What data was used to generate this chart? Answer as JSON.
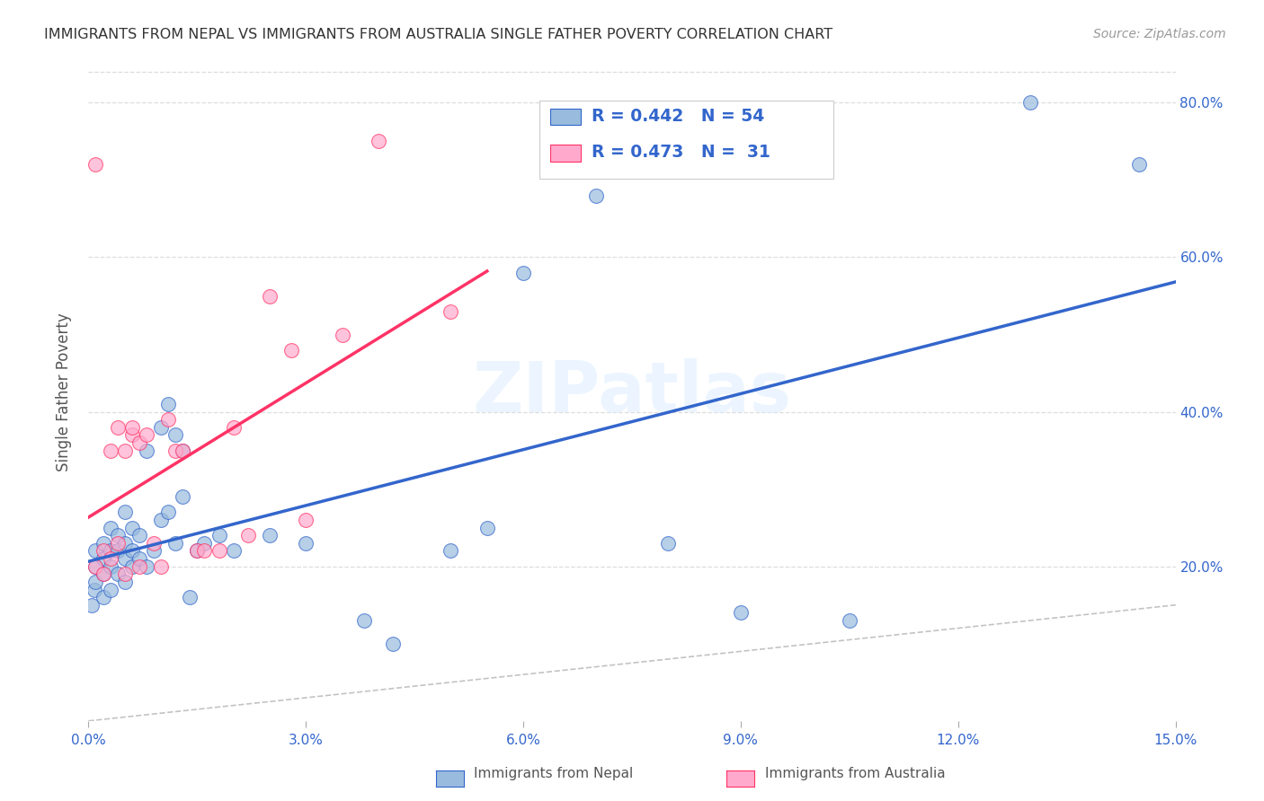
{
  "title": "IMMIGRANTS FROM NEPAL VS IMMIGRANTS FROM AUSTRALIA SINGLE FATHER POVERTY CORRELATION CHART",
  "source": "Source: ZipAtlas.com",
  "ylabel": "Single Father Poverty",
  "legend_label_1": "Immigrants from Nepal",
  "legend_label_2": "Immigrants from Australia",
  "r1": 0.442,
  "n1": 54,
  "r2": 0.473,
  "n2": 31,
  "xlim": [
    0.0,
    0.15
  ],
  "ylim": [
    0.0,
    0.85
  ],
  "color_nepal": "#99BBDD",
  "color_australia": "#FFAACC",
  "color_line_nepal": "#3366CC",
  "color_line_australia": "#FF3366",
  "color_title": "#333333",
  "color_axis_labels": "#3366CC",
  "watermark": "ZIPatlas",
  "nepal_x": [
    0.0005,
    0.0008,
    0.001,
    0.001,
    0.001,
    0.002,
    0.002,
    0.002,
    0.002,
    0.003,
    0.003,
    0.003,
    0.003,
    0.004,
    0.004,
    0.004,
    0.005,
    0.005,
    0.005,
    0.005,
    0.006,
    0.006,
    0.006,
    0.007,
    0.007,
    0.008,
    0.008,
    0.009,
    0.01,
    0.01,
    0.011,
    0.011,
    0.012,
    0.012,
    0.013,
    0.013,
    0.014,
    0.015,
    0.016,
    0.018,
    0.02,
    0.025,
    0.03,
    0.038,
    0.042,
    0.05,
    0.055,
    0.06,
    0.07,
    0.08,
    0.09,
    0.105,
    0.13,
    0.145
  ],
  "nepal_y": [
    0.15,
    0.17,
    0.18,
    0.2,
    0.22,
    0.16,
    0.19,
    0.21,
    0.23,
    0.17,
    0.2,
    0.22,
    0.25,
    0.19,
    0.22,
    0.24,
    0.18,
    0.21,
    0.23,
    0.27,
    0.2,
    0.22,
    0.25,
    0.21,
    0.24,
    0.2,
    0.35,
    0.22,
    0.38,
    0.26,
    0.41,
    0.27,
    0.37,
    0.23,
    0.35,
    0.29,
    0.16,
    0.22,
    0.23,
    0.24,
    0.22,
    0.24,
    0.23,
    0.13,
    0.1,
    0.22,
    0.25,
    0.58,
    0.68,
    0.23,
    0.14,
    0.13,
    0.8,
    0.72
  ],
  "australia_x": [
    0.001,
    0.001,
    0.002,
    0.002,
    0.003,
    0.003,
    0.004,
    0.004,
    0.005,
    0.005,
    0.006,
    0.006,
    0.007,
    0.007,
    0.008,
    0.009,
    0.01,
    0.011,
    0.012,
    0.013,
    0.015,
    0.016,
    0.018,
    0.02,
    0.022,
    0.025,
    0.028,
    0.03,
    0.035,
    0.04,
    0.05
  ],
  "australia_y": [
    0.2,
    0.72,
    0.19,
    0.22,
    0.21,
    0.35,
    0.23,
    0.38,
    0.19,
    0.35,
    0.37,
    0.38,
    0.2,
    0.36,
    0.37,
    0.23,
    0.2,
    0.39,
    0.35,
    0.35,
    0.22,
    0.22,
    0.22,
    0.38,
    0.24,
    0.55,
    0.48,
    0.26,
    0.5,
    0.75,
    0.53
  ]
}
